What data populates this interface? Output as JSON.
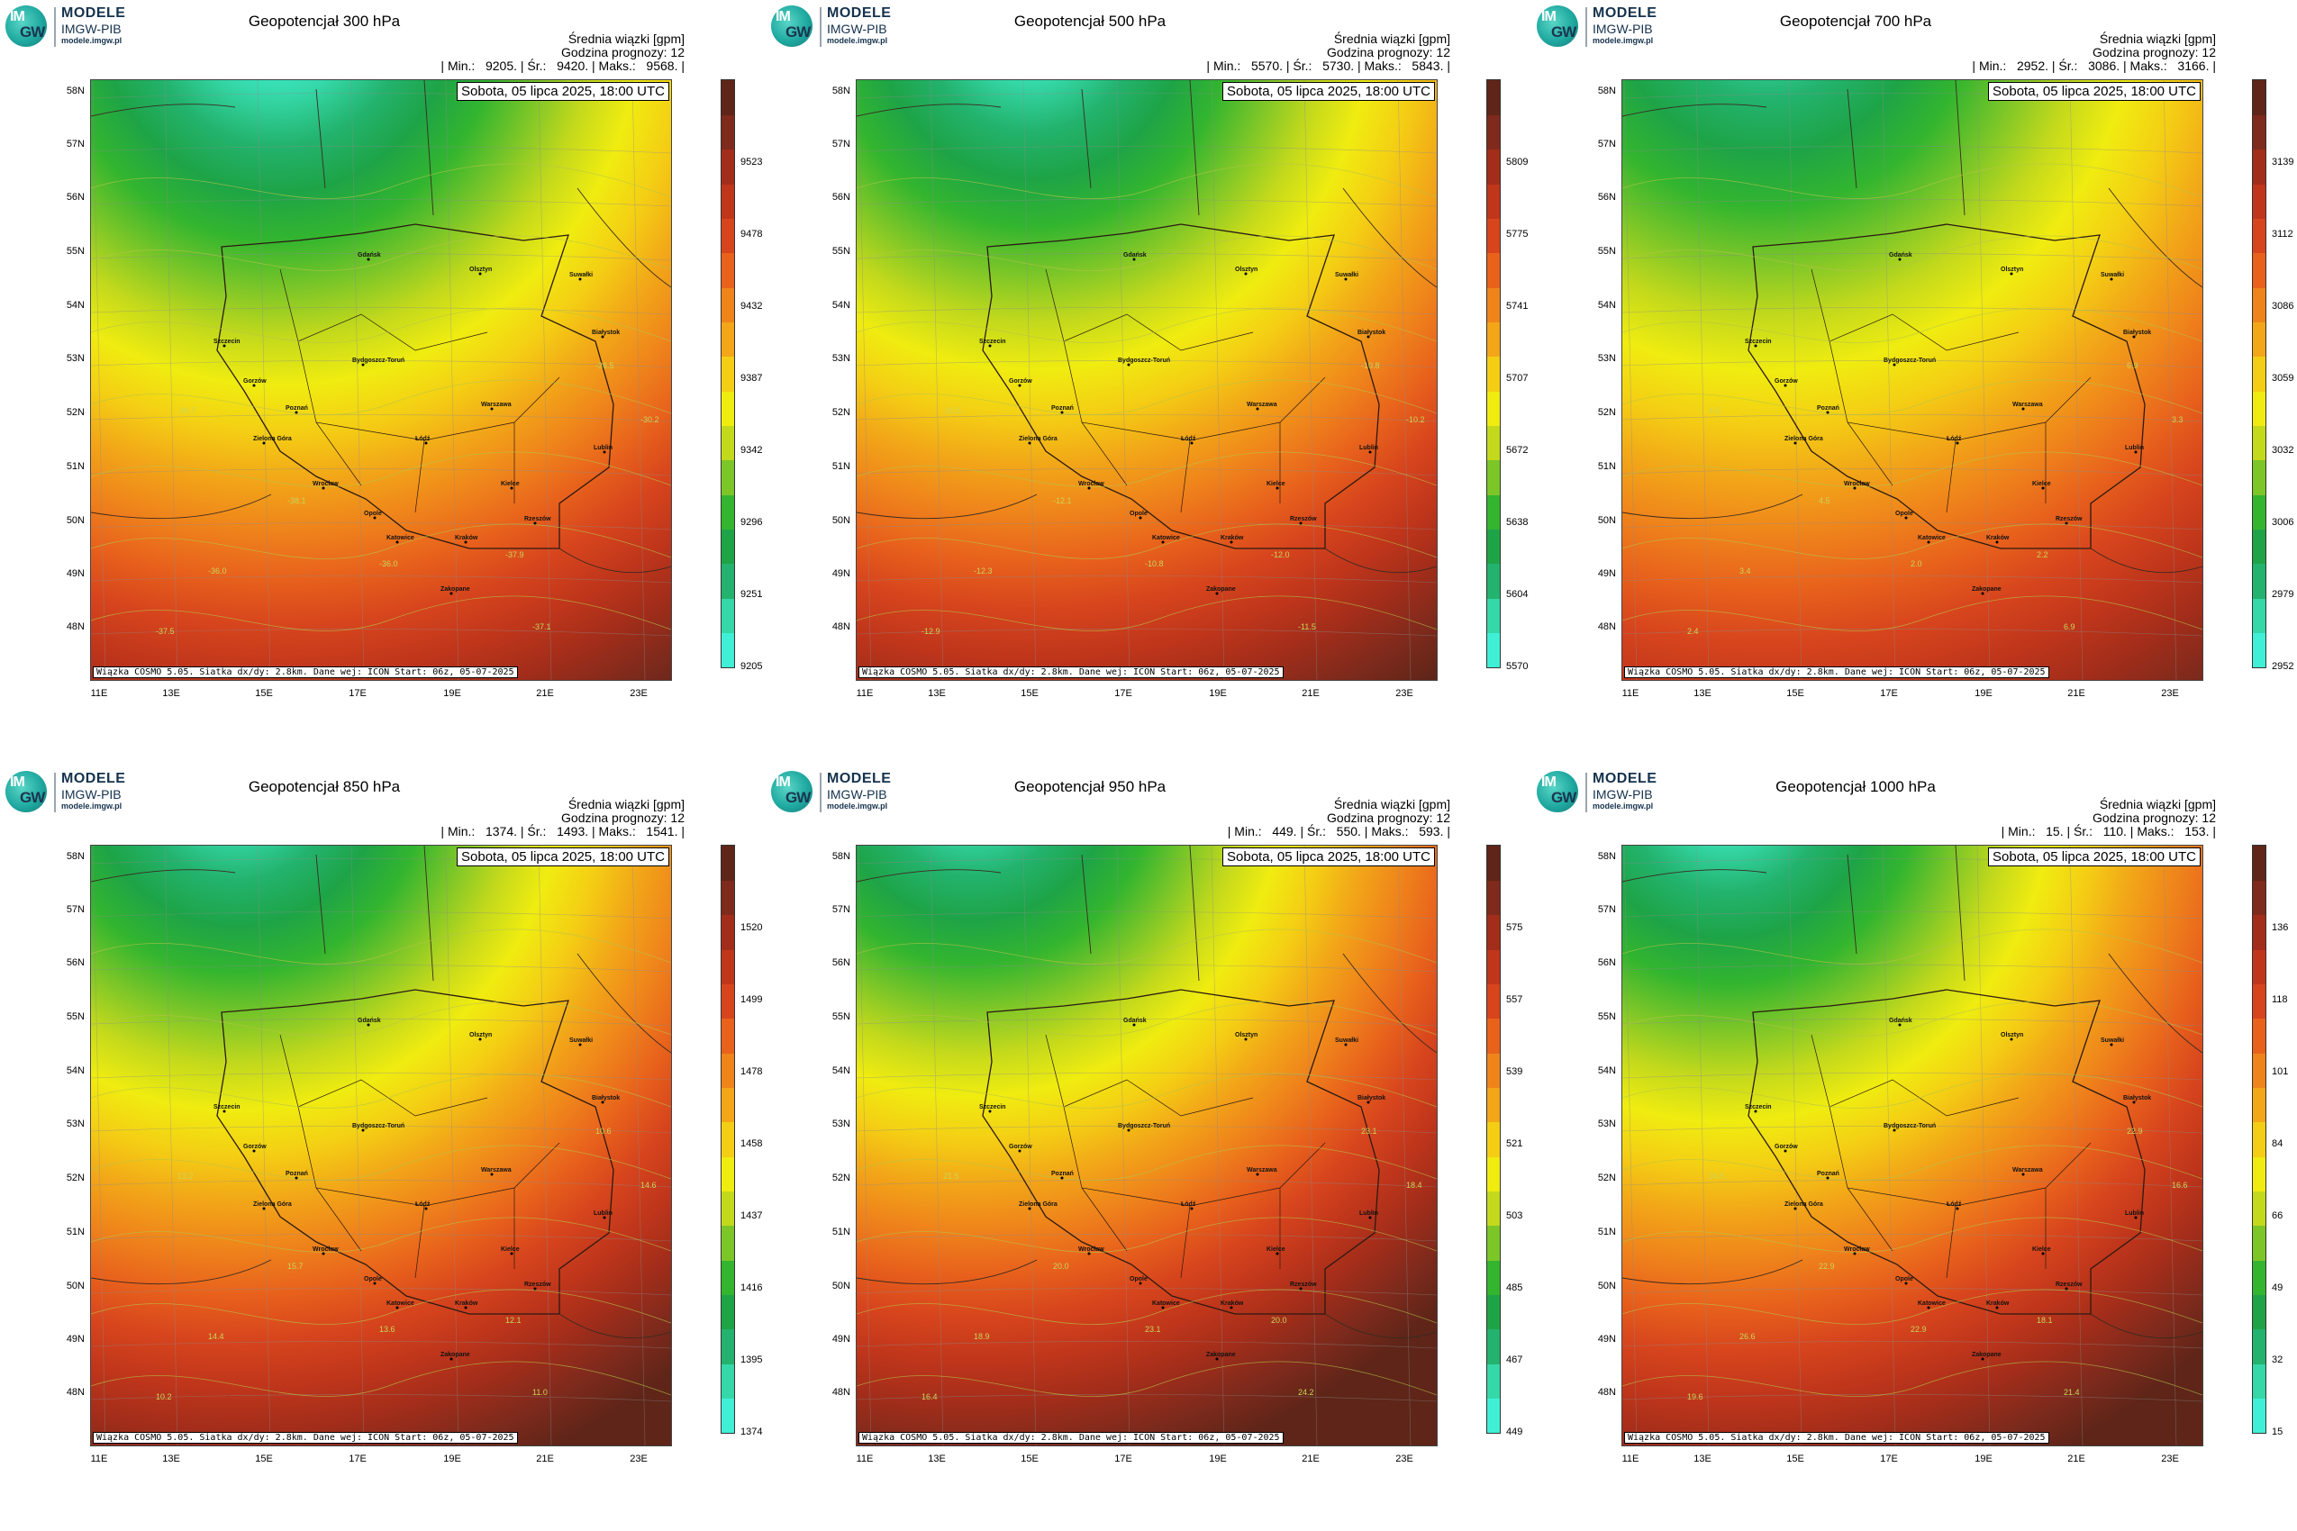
{
  "logo": {
    "line1": "MODELE",
    "line2": "IMGW-PIB",
    "line3": "modele.imgw.pl",
    "mark_top": "IM",
    "mark_bottom": "GW"
  },
  "common": {
    "unit_line": "Średnia wiązki [gpm]",
    "forecast_hour": "Godzina prognozy: 12",
    "date": "Sobota, 05 lipca 2025, 18:00 UTC",
    "footer": "Wiązka COSMO 5.05. Siatka dx/dy: 2.8km. Dane wej: ICON Start: 06z, 05-07-2025",
    "lat_labels": [
      "58N",
      "57N",
      "56N",
      "55N",
      "54N",
      "53N",
      "52N",
      "51N",
      "50N",
      "49N",
      "48N"
    ],
    "lon_labels": [
      "11E",
      "13E",
      "15E",
      "17E",
      "19E",
      "21E",
      "23E"
    ]
  },
  "colors": {
    "ramp": [
      "#3ff0d6",
      "#35d8a8",
      "#23b36e",
      "#1ea447",
      "#33b52f",
      "#7cc628",
      "#c3d91c",
      "#f0ec10",
      "#f4ce14",
      "#f2a618",
      "#ef841b",
      "#e8621c",
      "#d7451d",
      "#c0361b",
      "#a22d1a",
      "#7e2a1c",
      "#5e2518"
    ]
  },
  "city_labels": [
    "Gdańsk",
    "Olsztyn",
    "Suwałki",
    "Szczecin",
    "Białystok",
    "Bydgoszcz-Toruń",
    "Gorzów",
    "Poznań",
    "Warszawa",
    "Zielona Góra",
    "Łódź",
    "Lublin",
    "Wrocław",
    "Kielce",
    "Opole",
    "Katowice",
    "Kraków",
    "Rzeszów",
    "Zakopane"
  ],
  "panels": [
    {
      "title": "Geopotencjał 300 hPa",
      "stats": "| Min.:   9205. | Śr.:   9420. | Maks.:   9568. |",
      "colorbar": [
        "9205",
        "9251",
        "9296",
        "9342",
        "9387",
        "9432",
        "9478",
        "9523"
      ],
      "contours": [
        "-37.5",
        "-36.0",
        "-38.1",
        "-30.7",
        "-36.5",
        "-37.1",
        "-37.9",
        "-36.0",
        "-30.2"
      ]
    },
    {
      "title": "Geopotencjał 500 hPa",
      "stats": "| Min.:   5570. | Śr.:   5730. | Maks.:   5843. |",
      "colorbar": [
        "5570",
        "5604",
        "5638",
        "5672",
        "5707",
        "5741",
        "5775",
        "5809"
      ],
      "contours": [
        "-12.9",
        "-12.3",
        "-12.1",
        "-11.5",
        "-10.8",
        "-11.5",
        "-12.0",
        "-10.8",
        "-10.2"
      ]
    },
    {
      "title": "Geopotencjał 700 hPa",
      "stats": "| Min.:   2952. | Śr.:   3086. | Maks.:   3166. |",
      "colorbar": [
        "2952",
        "2979",
        "3006",
        "3032",
        "3059",
        "3086",
        "3112",
        "3139"
      ],
      "contours": [
        "2.4",
        "3.4",
        "4.5",
        "4.5",
        "6.9",
        "6.9",
        "2.2",
        "2.0",
        "3.3"
      ]
    },
    {
      "title": "Geopotencjał 850 hPa",
      "stats": "| Min.:   1374. | Śr.:   1493. | Maks.:   1541. |",
      "colorbar": [
        "1374",
        "1395",
        "1416",
        "1437",
        "1458",
        "1478",
        "1499",
        "1520"
      ],
      "contours": [
        "10.2",
        "14.4",
        "15.7",
        "13.2",
        "10.6",
        "11.0",
        "12.1",
        "13.6",
        "14.6"
      ]
    },
    {
      "title": "Geopotencjał 950 hPa",
      "stats": "| Min.:   449. | Śr.:   550. | Maks.:   593. |",
      "colorbar": [
        "449",
        "467",
        "485",
        "503",
        "521",
        "539",
        "557",
        "575"
      ],
      "contours": [
        "16.4",
        "18.9",
        "20.0",
        "21.5",
        "23.1",
        "24.2",
        "20.0",
        "23.1",
        "18.4"
      ]
    },
    {
      "title": "Geopotencjał 1000 hPa",
      "stats": "| Min.:   15. | Śr.:   110. | Maks.:   153. |",
      "colorbar": [
        "15",
        "32",
        "49",
        "66",
        "84",
        "101",
        "118",
        "136"
      ],
      "contours": [
        "19.6",
        "26.6",
        "22.9",
        "24.5",
        "22.9",
        "21.4",
        "18.1",
        "22.9",
        "16.6"
      ]
    }
  ]
}
